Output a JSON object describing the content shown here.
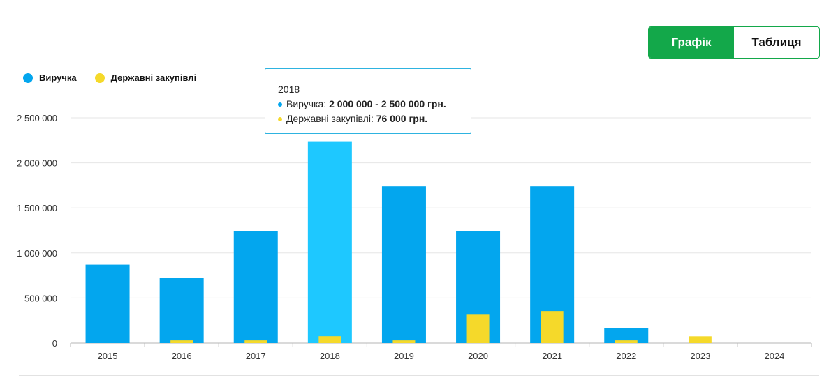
{
  "view_toggle": {
    "chart_label": "Графік",
    "table_label": "Таблиця"
  },
  "colors": {
    "revenue": "#03a6ee",
    "revenue_highlight": "#1ec8ff",
    "procurement": "#f5d92a",
    "accent": "#13a84a"
  },
  "tooltip": {
    "year": "2018",
    "revenue_label": "Виручка:",
    "revenue_value": "2 000 000 - 2 500 000 грн.",
    "procurement_label": "Державні закупівлі:",
    "procurement_value": "76 000 грн."
  },
  "chart_data": {
    "type": "bar",
    "categories": [
      "2015",
      "2016",
      "2017",
      "2018",
      "2019",
      "2020",
      "2021",
      "2022",
      "2023",
      "2024"
    ],
    "series": [
      {
        "name": "Виручка",
        "values": [
          870000,
          725000,
          1240000,
          2240000,
          1740000,
          1240000,
          1740000,
          170000,
          0,
          0
        ]
      },
      {
        "name": "Державні закупівлі",
        "values": [
          0,
          30000,
          30000,
          76000,
          30000,
          315000,
          355000,
          30000,
          75000,
          0
        ]
      }
    ],
    "highlighted_category": "2018",
    "yticks": [
      0,
      500000,
      1000000,
      1500000,
      2000000,
      2500000
    ],
    "ytick_labels": [
      "0",
      "500 000",
      "1 000 000",
      "1 500 000",
      "2 000 000",
      "2 500 000"
    ],
    "ylim": [
      0,
      2500000
    ],
    "grid": true,
    "legend_position": "top-left"
  }
}
